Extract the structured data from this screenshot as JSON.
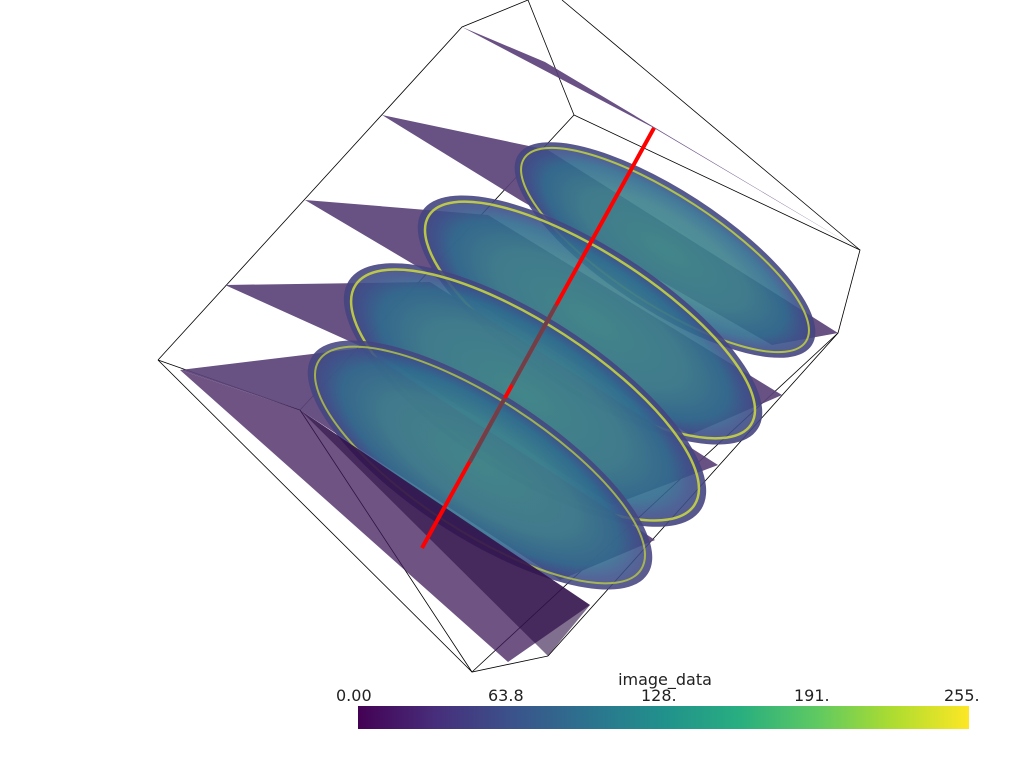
{
  "colorbar": {
    "title": "image_data",
    "tick_labels": [
      "0.00",
      "63.8",
      "128.",
      "191.",
      "255."
    ],
    "range": [
      0,
      255
    ],
    "colormap": "viridis",
    "stops": [
      "#440154",
      "#472d7b",
      "#3b528b",
      "#2c728e",
      "#21918c",
      "#28ae80",
      "#5ec962",
      "#addc30",
      "#fde725"
    ]
  },
  "scene": {
    "slice_count": 5,
    "bounding_box_color": "#000000",
    "probe_line_color": "#ff0000",
    "slice_base_color": "#440154"
  }
}
